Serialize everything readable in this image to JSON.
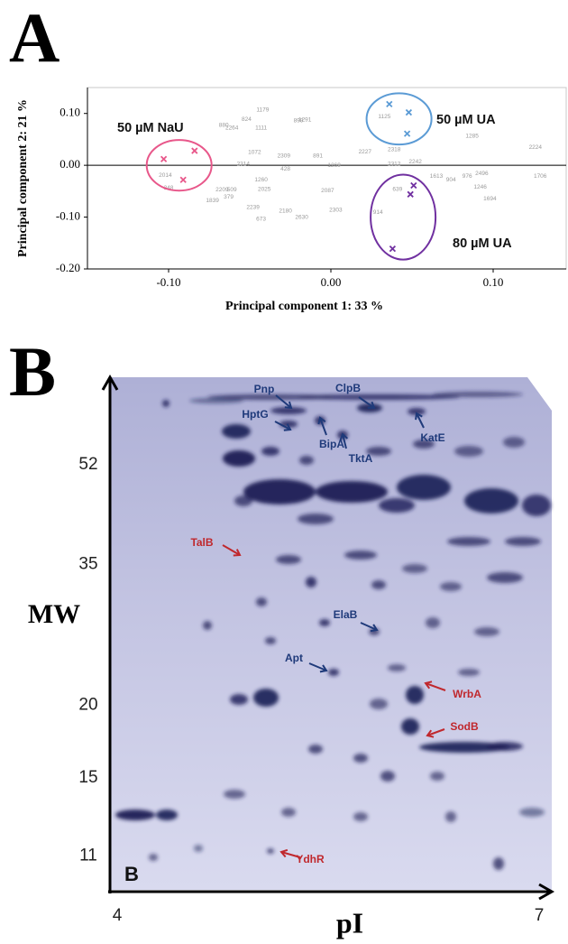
{
  "chart_data": [
    {
      "type": "scatter",
      "panel_label": "A",
      "xlabel": "Principal component 1: 33 %",
      "ylabel": "Principal component 2: 21 %",
      "xlim": [
        -0.15,
        0.145
      ],
      "ylim": [
        -0.2,
        0.15
      ],
      "xticks": [
        {
          "value": -0.1,
          "label": "-0.10"
        },
        {
          "value": 0,
          "label": "0.00"
        },
        {
          "value": 0.1,
          "label": "0.10"
        }
      ],
      "yticks": [
        {
          "value": 0.1,
          "label": "0.10"
        },
        {
          "value": 0,
          "label": "0.00"
        },
        {
          "value": -0.1,
          "label": "-0.10"
        },
        {
          "value": -0.2,
          "label": "-0.20"
        }
      ],
      "zero_line": true,
      "series": [
        {
          "name": "50 µM NaU",
          "color": "#e8578a",
          "x": [
            -0.103,
            -0.084,
            -0.091
          ],
          "y": [
            0.012,
            0.028,
            -0.028
          ]
        },
        {
          "name": "50 µM UA",
          "color": "#5b9bd5",
          "x": [
            0.036,
            0.048,
            0.047
          ],
          "y": [
            0.118,
            0.102,
            0.061
          ]
        },
        {
          "name": "80 µM UA",
          "color": "#7030a0",
          "x": [
            0.051,
            0.049,
            0.038
          ],
          "y": [
            -0.039,
            -0.056,
            -0.161
          ]
        }
      ],
      "point_labels": {
        "color": "#9a9a9a",
        "texts": [
          "1179",
          "880",
          "824",
          "2264",
          "1111",
          "899",
          "1291",
          "1072",
          "2309",
          "2314",
          "428",
          "891",
          "1269",
          "1260",
          "2025",
          "2209",
          "509",
          "379",
          "1839",
          "2239",
          "673",
          "2180",
          "2630",
          "2087",
          "2303",
          "2227",
          "2318",
          "2312",
          "2242",
          "1285",
          "2224",
          "1613",
          "904",
          "976",
          "2496",
          "1706",
          "1246",
          "1694",
          "914",
          "639",
          "1125",
          "348",
          "2014"
        ],
        "x": [
          -0.042,
          -0.066,
          -0.052,
          -0.061,
          -0.043,
          -0.02,
          -0.016,
          -0.047,
          -0.029,
          -0.054,
          -0.028,
          -0.008,
          0.002,
          -0.043,
          -0.041,
          -0.067,
          -0.061,
          -0.063,
          -0.073,
          -0.048,
          -0.043,
          -0.028,
          -0.018,
          -0.002,
          0.003,
          0.021,
          0.039,
          0.039,
          0.052,
          0.087,
          0.126,
          0.065,
          0.074,
          0.084,
          0.093,
          0.129,
          0.092,
          0.098,
          0.029,
          0.041,
          0.033,
          -0.1,
          -0.102
        ],
        "y": [
          0.107,
          0.077,
          0.089,
          0.072,
          0.072,
          0.086,
          0.088,
          0.025,
          0.018,
          0.002,
          -0.007,
          0.018,
          0,
          -0.028,
          -0.046,
          -0.047,
          -0.047,
          -0.061,
          -0.068,
          -0.081,
          -0.104,
          -0.088,
          -0.1,
          -0.049,
          -0.086,
          0.026,
          0.03,
          0.002,
          0.007,
          0.056,
          0.035,
          -0.021,
          -0.028,
          -0.021,
          -0.016,
          -0.021,
          -0.042,
          -0.065,
          -0.091,
          -0.046,
          0.094,
          -0.044,
          -0.019
        ]
      }
    },
    {
      "type": "gel",
      "panel_label": "B",
      "inset_label": "B",
      "xlabel": "pI",
      "ylabel": "MW",
      "xlim": [
        4,
        7
      ],
      "xticks": [
        4,
        7
      ],
      "ylim": [
        10,
        75
      ],
      "ylog": true,
      "yticks": [
        52,
        35,
        20,
        15,
        11
      ],
      "annotations": [
        {
          "text": "Pnp",
          "color": "#1f3a7a"
        },
        {
          "text": "HptG",
          "color": "#1f3a7a"
        },
        {
          "text": "ClpB",
          "color": "#1f3a7a"
        },
        {
          "text": "BipA",
          "color": "#1f3a7a"
        },
        {
          "text": "TktA",
          "color": "#1f3a7a"
        },
        {
          "text": "KatE",
          "color": "#1f3a7a"
        },
        {
          "text": "TalB",
          "color": "#c0282d"
        },
        {
          "text": "ElaB",
          "color": "#1f3a7a"
        },
        {
          "text": "Apt",
          "color": "#1f3a7a"
        },
        {
          "text": "WrbA",
          "color": "#c0282d"
        },
        {
          "text": "SodB",
          "color": "#c0282d"
        },
        {
          "text": "YdhR",
          "color": "#c0282d"
        }
      ]
    }
  ]
}
